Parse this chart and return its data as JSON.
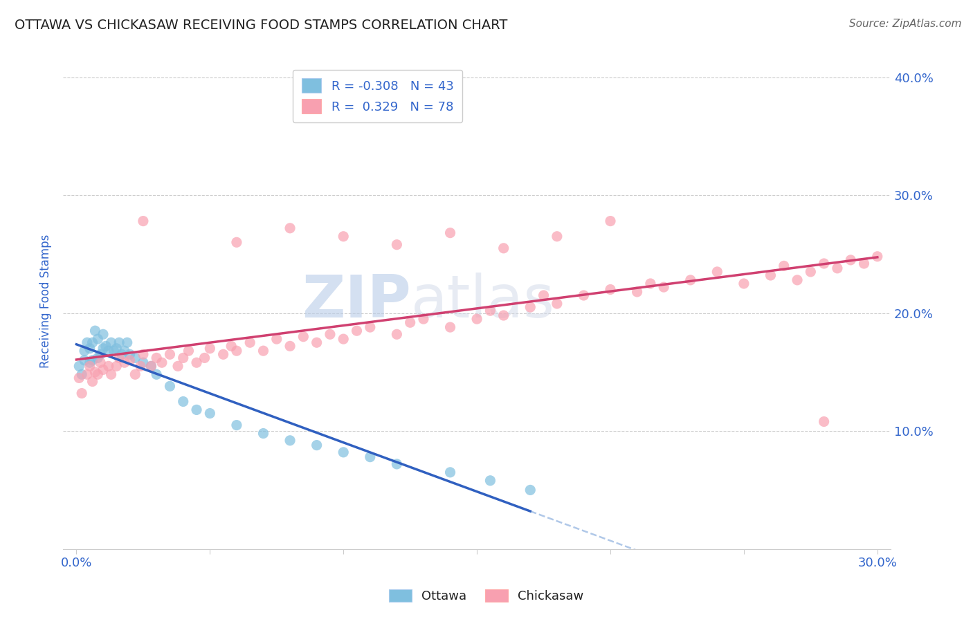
{
  "title": "OTTAWA VS CHICKASAW RECEIVING FOOD STAMPS CORRELATION CHART",
  "source_text": "Source: ZipAtlas.com",
  "ylabel": "Receiving Food Stamps",
  "xlim": [
    0.0,
    0.3
  ],
  "ylim": [
    0.0,
    0.42
  ],
  "yticks": [
    0.1,
    0.2,
    0.3,
    0.4
  ],
  "ytick_labels": [
    "10.0%",
    "20.0%",
    "30.0%",
    "40.0%"
  ],
  "ottawa_R": -0.308,
  "ottawa_N": 43,
  "chickasaw_R": 0.329,
  "chickasaw_N": 78,
  "ottawa_color": "#7fbfdf",
  "chickasaw_color": "#f8a0b0",
  "trend_ottawa_color": "#3060c0",
  "trend_chickasaw_color": "#d04070",
  "trend_extend_color": "#b0c8e8",
  "title_color": "#1a1a2e",
  "axis_label_color": "#3366cc",
  "tick_color": "#3366cc",
  "source_color": "#666666",
  "legend_text_color": "#3366cc",
  "ottawa_x": [
    0.001,
    0.002,
    0.003,
    0.003,
    0.004,
    0.005,
    0.005,
    0.006,
    0.006,
    0.007,
    0.008,
    0.008,
    0.009,
    0.01,
    0.01,
    0.011,
    0.012,
    0.013,
    0.014,
    0.015,
    0.016,
    0.017,
    0.018,
    0.019,
    0.02,
    0.022,
    0.025,
    0.028,
    0.03,
    0.035,
    0.04,
    0.045,
    0.05,
    0.06,
    0.07,
    0.08,
    0.09,
    0.1,
    0.11,
    0.12,
    0.14,
    0.155,
    0.17
  ],
  "ottawa_y": [
    0.155,
    0.148,
    0.16,
    0.168,
    0.175,
    0.158,
    0.17,
    0.16,
    0.175,
    0.185,
    0.162,
    0.178,
    0.165,
    0.17,
    0.182,
    0.172,
    0.168,
    0.175,
    0.168,
    0.17,
    0.175,
    0.165,
    0.168,
    0.175,
    0.165,
    0.162,
    0.158,
    0.155,
    0.148,
    0.138,
    0.125,
    0.118,
    0.115,
    0.105,
    0.098,
    0.092,
    0.088,
    0.082,
    0.078,
    0.072,
    0.065,
    0.058,
    0.05
  ],
  "chickasaw_x": [
    0.001,
    0.002,
    0.004,
    0.005,
    0.006,
    0.007,
    0.008,
    0.009,
    0.01,
    0.012,
    0.013,
    0.015,
    0.016,
    0.018,
    0.02,
    0.022,
    0.024,
    0.025,
    0.028,
    0.03,
    0.032,
    0.035,
    0.038,
    0.04,
    0.042,
    0.045,
    0.048,
    0.05,
    0.055,
    0.058,
    0.06,
    0.065,
    0.07,
    0.075,
    0.08,
    0.085,
    0.09,
    0.095,
    0.1,
    0.105,
    0.11,
    0.12,
    0.125,
    0.13,
    0.14,
    0.15,
    0.155,
    0.16,
    0.17,
    0.175,
    0.18,
    0.19,
    0.2,
    0.21,
    0.215,
    0.22,
    0.23,
    0.24,
    0.25,
    0.26,
    0.265,
    0.27,
    0.275,
    0.28,
    0.285,
    0.29,
    0.295,
    0.3,
    0.025,
    0.06,
    0.08,
    0.1,
    0.12,
    0.14,
    0.16,
    0.18,
    0.2,
    0.28
  ],
  "chickasaw_y": [
    0.145,
    0.132,
    0.148,
    0.155,
    0.142,
    0.15,
    0.148,
    0.158,
    0.152,
    0.155,
    0.148,
    0.155,
    0.162,
    0.158,
    0.16,
    0.148,
    0.155,
    0.165,
    0.155,
    0.162,
    0.158,
    0.165,
    0.155,
    0.162,
    0.168,
    0.158,
    0.162,
    0.17,
    0.165,
    0.172,
    0.168,
    0.175,
    0.168,
    0.178,
    0.172,
    0.18,
    0.175,
    0.182,
    0.178,
    0.185,
    0.188,
    0.182,
    0.192,
    0.195,
    0.188,
    0.195,
    0.202,
    0.198,
    0.205,
    0.215,
    0.208,
    0.215,
    0.22,
    0.218,
    0.225,
    0.222,
    0.228,
    0.235,
    0.225,
    0.232,
    0.24,
    0.228,
    0.235,
    0.242,
    0.238,
    0.245,
    0.242,
    0.248,
    0.278,
    0.26,
    0.272,
    0.265,
    0.258,
    0.268,
    0.255,
    0.265,
    0.278,
    0.108
  ]
}
